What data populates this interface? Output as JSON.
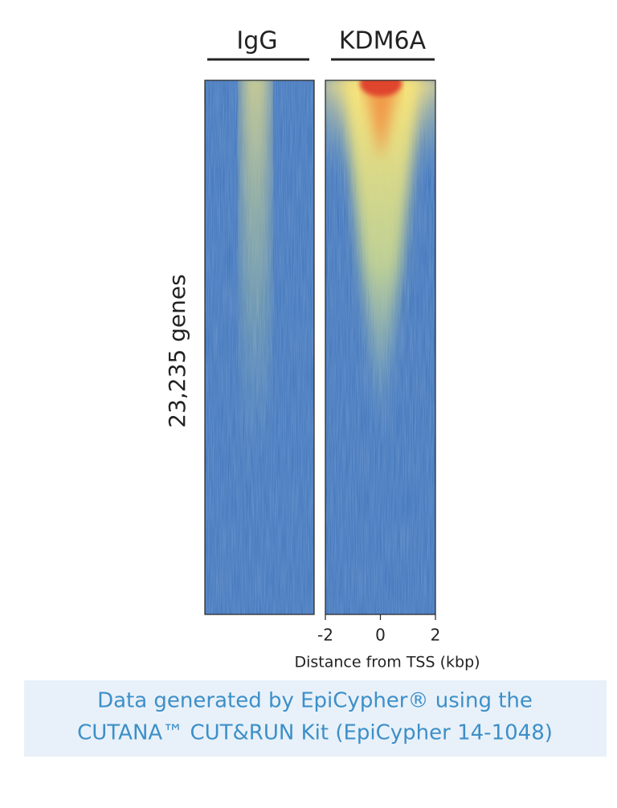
{
  "chart_data": {
    "type": "heatmap",
    "panels": [
      {
        "title": "IgG"
      },
      {
        "title": "KDM6A"
      }
    ],
    "ylabel": "23,235 genes",
    "xlabel": "Distance from TSS (kbp)",
    "xlim": [
      -2,
      2
    ],
    "xticks": [
      -2,
      0,
      2
    ]
  },
  "caption": {
    "lines": [
      "Data generated by EpiCypher® using the",
      "CUTANA™ CUT&RUN Kit (EpiCypher 14-1048)"
    ]
  }
}
